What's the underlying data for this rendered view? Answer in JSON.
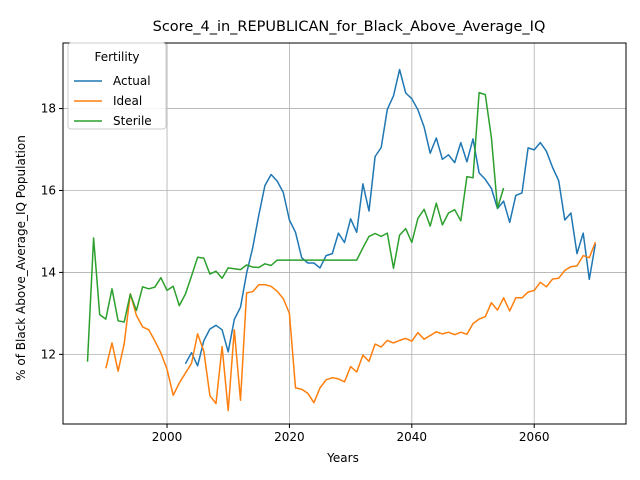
{
  "chart_data": {
    "type": "line",
    "title": "Score_4_in_REPUBLICAN_for_Black_Above_Average_IQ",
    "xlabel": "Years",
    "ylabel": "% of Black Above_Average_IQ Population",
    "xlim": [
      1983,
      2075
    ],
    "ylim": [
      10.3,
      19.6
    ],
    "xticks": [
      2000,
      2020,
      2040,
      2060
    ],
    "yticks": [
      12,
      14,
      16,
      18
    ],
    "grid": true,
    "legend": {
      "title": "Fertility",
      "placement": "top-left"
    },
    "series": [
      {
        "name": "Actual",
        "color": "#1f77b4",
        "x": [
          2003,
          2004,
          2005,
          2006,
          2007,
          2008,
          2009,
          2010,
          2011,
          2012,
          2013,
          2014,
          2015,
          2016,
          2017,
          2018,
          2019,
          2020,
          2021,
          2022,
          2023,
          2024,
          2025,
          2026,
          2027,
          2028,
          2029,
          2030,
          2031,
          2032,
          2033,
          2034,
          2035,
          2036,
          2037,
          2038,
          2039,
          2040,
          2041,
          2042,
          2043,
          2044,
          2045,
          2046,
          2047,
          2048,
          2049,
          2050,
          2051,
          2052,
          2053,
          2054,
          2055,
          2056,
          2057,
          2058,
          2059,
          2060,
          2061,
          2062,
          2063,
          2064,
          2065,
          2066,
          2067,
          2068,
          2069,
          2070
        ],
        "y": [
          11.77,
          12.04,
          11.72,
          12.33,
          12.62,
          12.71,
          12.6,
          12.06,
          12.85,
          13.15,
          13.98,
          14.6,
          15.4,
          16.12,
          16.39,
          16.23,
          15.95,
          15.28,
          14.98,
          14.36,
          14.23,
          14.23,
          14.11,
          14.41,
          14.46,
          14.96,
          14.73,
          15.31,
          14.98,
          16.16,
          15.5,
          16.83,
          17.05,
          17.98,
          18.31,
          18.95,
          18.38,
          18.24,
          17.97,
          17.55,
          16.91,
          17.28,
          16.76,
          16.87,
          16.68,
          17.17,
          16.7,
          17.26,
          16.43,
          16.27,
          16.05,
          15.56,
          15.74,
          15.22,
          15.88,
          15.94,
          17.04,
          16.99,
          17.17,
          16.96,
          16.56,
          16.24,
          15.28,
          15.45,
          14.46,
          14.96,
          13.83,
          14.7
        ]
      },
      {
        "name": "Ideal",
        "color": "#ff7f0e",
        "x": [
          1990,
          1991,
          1992,
          1993,
          1994,
          1995,
          1996,
          1997,
          1998,
          1999,
          2000,
          2001,
          2002,
          2003,
          2004,
          2005,
          2006,
          2007,
          2008,
          2009,
          2010,
          2011,
          2012,
          2013,
          2014,
          2015,
          2016,
          2017,
          2018,
          2019,
          2020,
          2021,
          2022,
          2023,
          2024,
          2025,
          2026,
          2027,
          2028,
          2029,
          2030,
          2031,
          2032,
          2033,
          2034,
          2035,
          2036,
          2037,
          2038,
          2039,
          2040,
          2041,
          2042,
          2043,
          2044,
          2045,
          2046,
          2047,
          2048,
          2049,
          2050,
          2051,
          2052,
          2053,
          2054,
          2055,
          2056,
          2057,
          2058,
          2059,
          2060,
          2061,
          2062,
          2063,
          2064,
          2065,
          2066,
          2067,
          2068,
          2069,
          2070
        ],
        "y": [
          11.66,
          12.28,
          11.59,
          12.26,
          13.48,
          12.95,
          12.67,
          12.6,
          12.33,
          12.03,
          11.64,
          11.0,
          11.3,
          11.54,
          11.78,
          12.5,
          12.08,
          10.99,
          10.8,
          12.19,
          10.63,
          12.6,
          10.88,
          13.5,
          13.53,
          13.7,
          13.7,
          13.66,
          13.54,
          13.36,
          13.0,
          11.18,
          11.15,
          11.05,
          10.82,
          11.18,
          11.38,
          11.43,
          11.4,
          11.33,
          11.7,
          11.57,
          11.98,
          11.83,
          12.25,
          12.18,
          12.34,
          12.28,
          12.34,
          12.39,
          12.32,
          12.53,
          12.37,
          12.46,
          12.55,
          12.5,
          12.54,
          12.48,
          12.54,
          12.49,
          12.75,
          12.86,
          12.92,
          13.26,
          13.08,
          13.38,
          13.06,
          13.38,
          13.38,
          13.52,
          13.56,
          13.76,
          13.65,
          13.84,
          13.86,
          14.05,
          14.14,
          14.16,
          14.41,
          14.36,
          14.74
        ]
      },
      {
        "name": "Sterile",
        "color": "#2ca02c",
        "x": [
          1987,
          1988,
          1989,
          1990,
          1991,
          1992,
          1993,
          1994,
          1995,
          1996,
          1997,
          1998,
          1999,
          2000,
          2001,
          2002,
          2003,
          2004,
          2005,
          2006,
          2007,
          2008,
          2009,
          2010,
          2011,
          2012,
          2013,
          2014,
          2015,
          2016,
          2017,
          2018,
          2019,
          2020,
          2021,
          2022,
          2023,
          2024,
          2025,
          2026,
          2027,
          2028,
          2029,
          2030,
          2031,
          2032,
          2033,
          2034,
          2035,
          2036,
          2037,
          2038,
          2039,
          2040,
          2041,
          2042,
          2043,
          2044,
          2045,
          2046,
          2047,
          2048,
          2049,
          2050,
          2051,
          2052,
          2053,
          2054,
          2055
        ],
        "y": [
          11.82,
          14.84,
          12.97,
          12.86,
          13.6,
          12.82,
          12.79,
          13.47,
          13.07,
          13.65,
          13.6,
          13.64,
          13.87,
          13.56,
          13.66,
          13.19,
          13.47,
          13.91,
          14.37,
          14.35,
          13.96,
          14.03,
          13.86,
          14.11,
          14.09,
          14.07,
          14.18,
          14.13,
          14.12,
          14.21,
          14.17,
          14.3,
          14.3,
          14.3,
          14.3,
          14.3,
          14.3,
          14.3,
          14.3,
          14.3,
          14.3,
          14.3,
          14.3,
          14.3,
          14.3,
          14.6,
          14.88,
          14.95,
          14.88,
          14.96,
          14.1,
          14.91,
          15.07,
          14.73,
          15.32,
          15.54,
          15.13,
          15.69,
          15.16,
          15.45,
          15.53,
          15.26,
          16.34,
          16.31,
          18.39,
          18.34,
          17.29,
          15.57,
          16.06
        ]
      }
    ]
  }
}
